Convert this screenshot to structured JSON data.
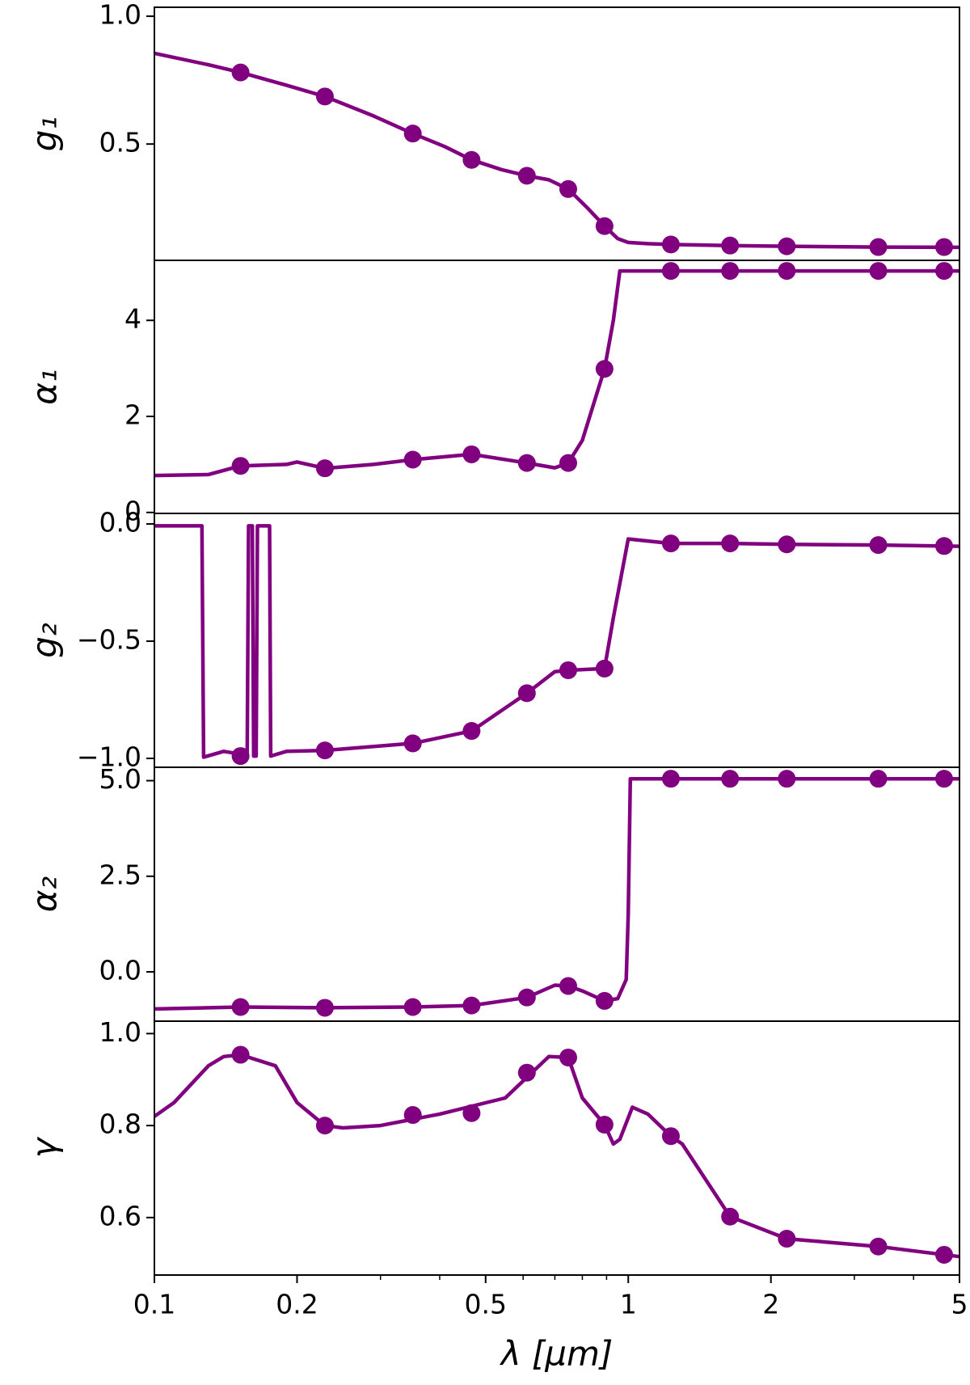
{
  "chart_data": [
    {
      "type": "line",
      "ylabel": "g₁",
      "color": "#800080",
      "xlog": true,
      "xlim": [
        0.1,
        5
      ],
      "ylim": [
        0.045,
        1.035
      ],
      "yticks": [
        {
          "value": 0.5,
          "label": "0.5"
        },
        {
          "value": 1.0,
          "label": "1.0"
        }
      ],
      "x": [
        0.1,
        0.13,
        0.152,
        0.19,
        0.229,
        0.29,
        0.351,
        0.41,
        0.467,
        0.54,
        0.611,
        0.68,
        0.747,
        0.82,
        0.891,
        0.95,
        1.0,
        1.1,
        1.23,
        1.64,
        2.16,
        3.37,
        5
      ],
      "values": [
        0.855,
        0.81,
        0.78,
        0.73,
        0.686,
        0.61,
        0.541,
        0.49,
        0.438,
        0.4,
        0.376,
        0.36,
        0.324,
        0.25,
        0.179,
        0.13,
        0.115,
        0.11,
        0.107,
        0.103,
        0.1,
        0.097,
        0.096
      ],
      "markers": {
        "x": [
          0.152,
          0.229,
          0.351,
          0.467,
          0.611,
          0.747,
          0.891,
          1.23,
          1.64,
          2.16,
          3.37,
          4.64
        ],
        "values": [
          0.78,
          0.686,
          0.541,
          0.438,
          0.376,
          0.324,
          0.179,
          0.107,
          0.103,
          0.1,
          0.097,
          0.097
        ]
      }
    },
    {
      "type": "line",
      "ylabel": "α₁",
      "color": "#800080",
      "xlog": true,
      "xlim": [
        0.1,
        5
      ],
      "ylim": [
        -0.02,
        5.25
      ],
      "yticks": [
        0,
        2,
        4
      ],
      "x": [
        0.1,
        0.13,
        0.152,
        0.19,
        0.2,
        0.229,
        0.29,
        0.351,
        0.467,
        0.611,
        0.7,
        0.747,
        0.8,
        0.86,
        0.891,
        0.93,
        0.96,
        1.23,
        5
      ],
      "values": [
        0.77,
        0.79,
        0.97,
        1.0,
        1.05,
        0.92,
        1.0,
        1.1,
        1.21,
        1.03,
        0.93,
        1.03,
        1.5,
        2.5,
        2.99,
        4.0,
        5.03,
        5.03,
        5.03
      ],
      "markers": {
        "x": [
          0.152,
          0.229,
          0.351,
          0.467,
          0.611,
          0.747,
          0.891,
          1.23,
          1.64,
          2.16,
          3.37,
          4.64
        ],
        "values": [
          0.97,
          0.92,
          1.1,
          1.21,
          1.03,
          1.03,
          2.99,
          5.03,
          5.03,
          5.03,
          5.03,
          5.03
        ]
      }
    },
    {
      "type": "line",
      "ylabel": "g₂",
      "color": "#800080",
      "xlog": true,
      "xlim": [
        0.1,
        5
      ],
      "ylim": [
        -1.038,
        0.045
      ],
      "yticks": [
        {
          "value": -1.0,
          "label": "−1.0"
        },
        {
          "value": -0.5,
          "label": "−0.5"
        },
        {
          "value": 0,
          "label": "0.0"
        }
      ],
      "x": [
        0.1,
        0.126,
        0.127,
        0.14,
        0.15,
        0.157,
        0.158,
        0.161,
        0.162,
        0.164,
        0.165,
        0.175,
        0.176,
        0.19,
        0.229,
        0.351,
        0.467,
        0.611,
        0.7,
        0.747,
        0.891,
        0.93,
        1.0,
        1.23,
        1.64,
        2.16,
        3.37,
        5
      ],
      "values": [
        -0.008,
        -0.008,
        -0.995,
        -0.97,
        -0.98,
        -0.99,
        -0.008,
        -0.008,
        -0.99,
        -0.99,
        -0.008,
        -0.008,
        -0.99,
        -0.97,
        -0.966,
        -0.936,
        -0.883,
        -0.722,
        -0.63,
        -0.624,
        -0.617,
        -0.4,
        -0.064,
        -0.083,
        -0.083,
        -0.087,
        -0.09,
        -0.095
      ],
      "markers": {
        "x": [
          0.152,
          0.229,
          0.351,
          0.467,
          0.611,
          0.747,
          0.891,
          1.23,
          1.64,
          2.16,
          3.37,
          4.64
        ],
        "values": [
          -0.99,
          -0.966,
          -0.936,
          -0.883,
          -0.722,
          -0.624,
          -0.617,
          -0.083,
          -0.083,
          -0.087,
          -0.09,
          -0.094
        ]
      }
    },
    {
      "type": "line",
      "ylabel": "α₂",
      "color": "#800080",
      "xlog": true,
      "xlim": [
        0.1,
        5
      ],
      "ylim": [
        -1.29,
        5.35
      ],
      "yticks": [
        {
          "value": 0,
          "label": "0.0"
        },
        {
          "value": 2.5,
          "label": "2.5"
        },
        {
          "value": 5.0,
          "label": "5.0"
        }
      ],
      "x": [
        0.1,
        0.152,
        0.229,
        0.351,
        0.467,
        0.611,
        0.7,
        0.747,
        0.8,
        0.891,
        0.95,
        0.99,
        1.0,
        1.01,
        1.23,
        5
      ],
      "values": [
        -0.97,
        -0.92,
        -0.94,
        -0.92,
        -0.88,
        -0.67,
        -0.35,
        -0.37,
        -0.5,
        -0.76,
        -0.7,
        -0.2,
        1.5,
        5.05,
        5.05,
        5.05
      ],
      "markers": {
        "x": [
          0.152,
          0.229,
          0.351,
          0.467,
          0.611,
          0.747,
          0.891,
          1.23,
          1.64,
          2.16,
          3.37,
          4.64
        ],
        "values": [
          -0.92,
          -0.94,
          -0.92,
          -0.88,
          -0.67,
          -0.37,
          -0.76,
          5.05,
          5.05,
          5.05,
          5.05,
          5.05
        ]
      }
    },
    {
      "type": "line",
      "ylabel": "γ",
      "xlabel": "λ [μm]",
      "color": "#800080",
      "xlog": true,
      "xlim": [
        0.1,
        5
      ],
      "ylim": [
        0.475,
        1.027
      ],
      "yticks": [
        0.6,
        0.8,
        {
          "value": 1.0,
          "label": "1.0"
        }
      ],
      "xticks": [
        0.1,
        0.2,
        0.5,
        1,
        2,
        5
      ],
      "xticks_minor": [
        0.3,
        0.4,
        0.6,
        0.7,
        0.8,
        0.9,
        3,
        4
      ],
      "x": [
        0.1,
        0.11,
        0.13,
        0.14,
        0.152,
        0.18,
        0.2,
        0.229,
        0.25,
        0.3,
        0.4,
        0.55,
        0.68,
        0.747,
        0.8,
        0.891,
        0.93,
        0.96,
        1.02,
        1.1,
        1.23,
        1.3,
        1.64,
        2.16,
        3.37,
        5
      ],
      "values": [
        0.82,
        0.85,
        0.93,
        0.95,
        0.954,
        0.93,
        0.85,
        0.8,
        0.795,
        0.8,
        0.825,
        0.86,
        0.95,
        0.948,
        0.86,
        0.802,
        0.76,
        0.77,
        0.84,
        0.825,
        0.777,
        0.76,
        0.602,
        0.554,
        0.537,
        0.515
      ],
      "markers": {
        "x": [
          0.152,
          0.229,
          0.351,
          0.467,
          0.611,
          0.747,
          0.891,
          1.23,
          1.64,
          2.16,
          3.37,
          4.64
        ],
        "values": [
          0.954,
          0.8,
          0.823,
          0.827,
          0.915,
          0.948,
          0.802,
          0.777,
          0.602,
          0.554,
          0.537,
          0.519
        ]
      }
    }
  ]
}
